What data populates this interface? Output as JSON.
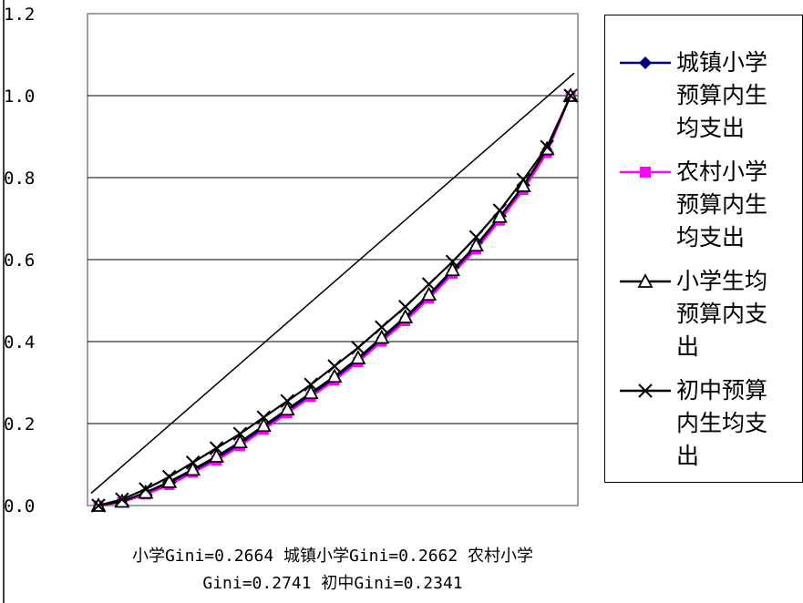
{
  "chart_data": {
    "type": "line",
    "x": [
      0,
      0.05,
      0.1,
      0.15,
      0.2,
      0.25,
      0.3,
      0.35,
      0.4,
      0.45,
      0.5,
      0.55,
      0.6,
      0.65,
      0.7,
      0.75,
      0.8,
      0.85,
      0.9,
      0.95,
      1.0
    ],
    "ylim": [
      0,
      1.2
    ],
    "yticks": [
      "0.0",
      "0.2",
      "0.4",
      "0.6",
      "0.8",
      "1.0",
      "1.2"
    ],
    "grid": true,
    "legend_position": "right",
    "equality_line": true,
    "series": [
      {
        "name": "城镇小学预算内生均支出",
        "color": "#000080",
        "marker": "diamond",
        "values": [
          0,
          0.01,
          0.03,
          0.055,
          0.085,
          0.115,
          0.15,
          0.19,
          0.23,
          0.27,
          0.31,
          0.355,
          0.405,
          0.455,
          0.51,
          0.57,
          0.63,
          0.7,
          0.775,
          0.865,
          1.0
        ]
      },
      {
        "name": "农村小学预算内生均支出",
        "color": "#ff00ff",
        "marker": "square",
        "values": [
          0,
          0.008,
          0.027,
          0.05,
          0.08,
          0.11,
          0.145,
          0.185,
          0.225,
          0.265,
          0.305,
          0.35,
          0.4,
          0.45,
          0.505,
          0.565,
          0.625,
          0.695,
          0.77,
          0.86,
          1.0
        ]
      },
      {
        "name": "小学生均预算内支出",
        "color": "#000000",
        "marker": "triangle",
        "values": [
          0,
          0.01,
          0.032,
          0.058,
          0.088,
          0.12,
          0.155,
          0.195,
          0.235,
          0.275,
          0.315,
          0.36,
          0.41,
          0.46,
          0.515,
          0.575,
          0.635,
          0.705,
          0.78,
          0.87,
          1.0
        ]
      },
      {
        "name": "初中预算内生均支出",
        "color": "#000000",
        "marker": "x",
        "values": [
          0,
          0.015,
          0.04,
          0.07,
          0.105,
          0.14,
          0.175,
          0.215,
          0.255,
          0.295,
          0.34,
          0.385,
          0.435,
          0.485,
          0.54,
          0.595,
          0.655,
          0.72,
          0.795,
          0.875,
          1.0
        ]
      }
    ],
    "caption": "小学Gini=0.2664 城镇小学Gini=0.2662 农村小学Gini=0.2741 初中Gini=0.2341"
  },
  "legend": {
    "items": [
      {
        "label": "城镇小学\n预算内生\n均支出"
      },
      {
        "label": "农村小学\n预算内生\n均支出"
      },
      {
        "label": "小学生均\n预算内支\n出"
      },
      {
        "label": "初中预算\n内生均支\n出"
      }
    ]
  },
  "caption": {
    "line1": "小学Gini=0.2664 城镇小学Gini=0.2662 农村小学",
    "line2": "Gini=0.2741 初中Gini=0.2341"
  }
}
